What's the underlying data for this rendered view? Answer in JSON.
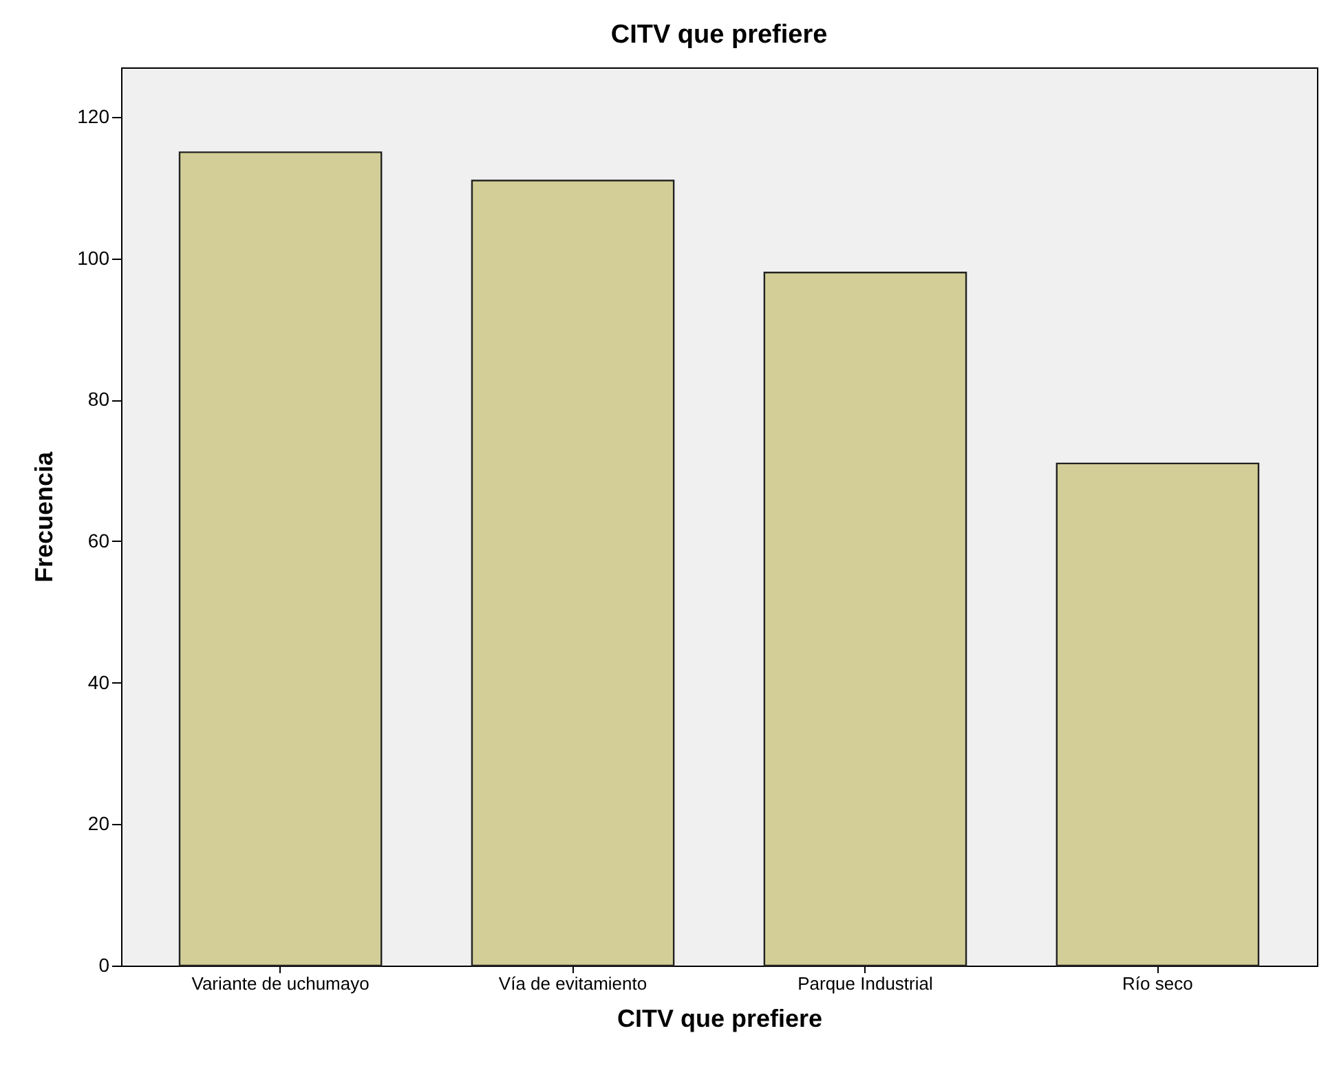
{
  "chart_data": {
    "type": "bar",
    "title": "CITV que prefiere",
    "xlabel": "CITV que prefiere",
    "ylabel": "Frecuencia",
    "categories": [
      "Variante de uchumayo",
      "Vía de evitamiento",
      "Parque Industrial",
      "Río seco"
    ],
    "values": [
      115,
      111,
      98,
      71
    ],
    "color": "#d3ce97",
    "ylim": [
      0,
      127
    ],
    "yticks": [
      0,
      20,
      40,
      60,
      80,
      100,
      120
    ]
  }
}
